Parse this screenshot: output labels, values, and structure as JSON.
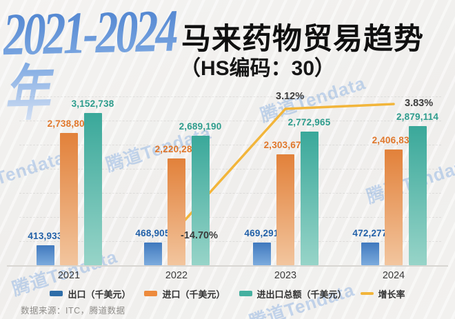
{
  "header": {
    "years_range": "2021-2024年",
    "title": "马来药物贸易趋势",
    "subtitle": "（HS编码：30）"
  },
  "watermark": {
    "text": "腾道Tendata"
  },
  "footer": {
    "source": "数据来源：ITC，腾道数据"
  },
  "colors": {
    "export_top": "#4079be",
    "export_bottom": "#7cabdd",
    "export_label": "#2160a8",
    "import_top": "#e2813a",
    "import_bottom": "#f2c59e",
    "import_label": "#e0772b",
    "total_top": "#3aa89a",
    "total_bottom": "#97d4c8",
    "total_label": "#2d9c8c",
    "growth_line": "#f2b53a",
    "legend_export": "#2e6da8",
    "legend_import": "#ed8a3c",
    "legend_total": "#45b0a0"
  },
  "chart_data": {
    "type": "bar",
    "title": "2021-2024年马来药物贸易趋势（HS编码：30）",
    "categories": [
      "2021",
      "2022",
      "2023",
      "2024"
    ],
    "series": [
      {
        "name": "出口（千美元）",
        "values": [
          413933,
          468905,
          469291,
          472277
        ]
      },
      {
        "name": "进口（千美元）",
        "values": [
          2738805,
          2220285,
          2303674,
          2406837
        ]
      },
      {
        "name": "进出口总额（千美元）",
        "values": [
          3152738,
          2689190,
          2772965,
          2879114
        ]
      }
    ],
    "line_series": {
      "name": "增长率",
      "values": [
        null,
        -14.7,
        3.12,
        3.83
      ],
      "labels": [
        "",
        "-14.70%",
        "3.12%",
        "3.83%"
      ]
    },
    "xlabel": "",
    "ylabel": "千美元",
    "ylim": [
      0,
      3500000
    ],
    "grid": "dashed-horizontal",
    "legend_position": "bottom"
  }
}
